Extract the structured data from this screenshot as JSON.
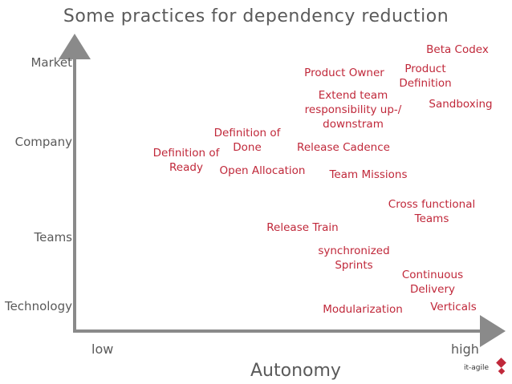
{
  "title": "Some practices for dependency reduction",
  "y_axis": {
    "market": "Market",
    "company": "Company",
    "teams": "Teams",
    "technology": "Technology"
  },
  "x_axis": {
    "low": "low",
    "high": "high",
    "title": "Autonomy"
  },
  "practices": {
    "beta_codex": "Beta Codex",
    "product_owner": "Product Owner",
    "product_definition": "Product\nDefinition",
    "extend_team": "Extend team\nresponsibility up-/\ndownstram",
    "sandboxing": "Sandboxing",
    "definition_of_done": "Definition of\nDone",
    "definition_of_ready": "Definition of\nReady",
    "release_cadence": "Release Cadence",
    "open_allocation": "Open Allocation",
    "team_missions": "Team Missions",
    "cross_functional": "Cross functional\nTeams",
    "release_train": "Release Train",
    "synchronized_sprints": "synchronized\nSprints",
    "continuous_delivery": "Continuous\nDelivery",
    "modularization": "Modularization",
    "verticals": "Verticals"
  },
  "logo": {
    "text": "it-agile"
  },
  "colors": {
    "accent": "#c0283a",
    "axis": "#8a8a8a"
  }
}
